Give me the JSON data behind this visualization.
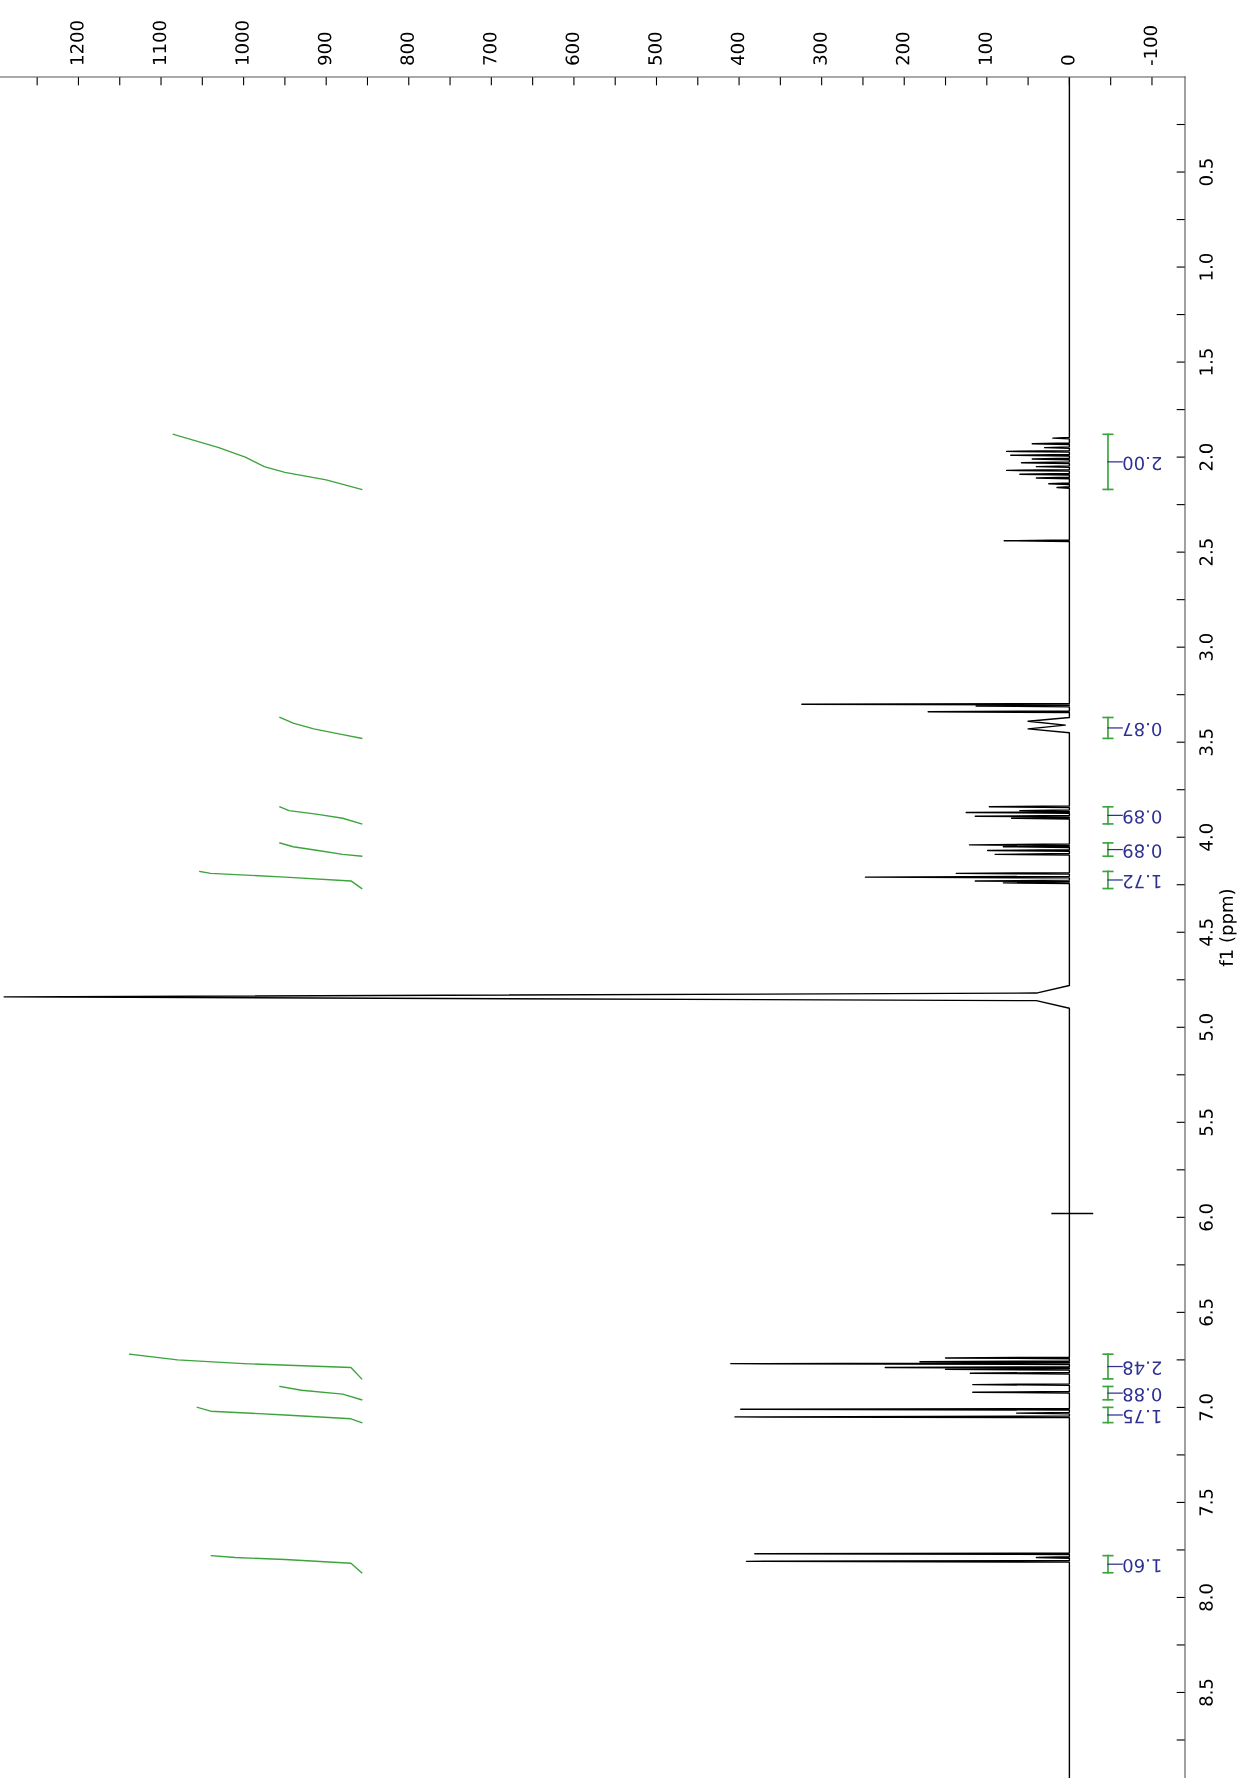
{
  "chart_data": {
    "type": "line",
    "orientation": "horizontal",
    "ylabel": "f1 (ppm)",
    "xlim": [
      1295,
      -140
    ],
    "ylim": [
      8.95,
      0
    ],
    "xticks": [
      {
        "value": 1250,
        "label": null
      },
      1200,
      {
        "value": 1150,
        "label": null
      },
      1100,
      {
        "value": 1050,
        "label": null
      },
      1000,
      {
        "value": 950,
        "label": null
      },
      900,
      {
        "value": 850,
        "label": null
      },
      800,
      {
        "value": 750,
        "label": null
      },
      700,
      {
        "value": 650,
        "label": null
      },
      600,
      {
        "value": 550,
        "label": null
      },
      500,
      {
        "value": 450,
        "label": null
      },
      400,
      {
        "value": 350,
        "label": null
      },
      300,
      {
        "value": 250,
        "label": null
      },
      200,
      {
        "value": 150,
        "label": null
      },
      100,
      {
        "value": 50,
        "label": null
      },
      0,
      {
        "value": -50,
        "label": null
      },
      -100
    ],
    "yticks": [
      {
        "value": 0.25,
        "label": null
      },
      0.5,
      {
        "value": 0.75,
        "label": null
      },
      {
        "value": 1,
        "label": "1.0"
      },
      {
        "value": 1.25,
        "label": null
      },
      1.5,
      {
        "value": 1.75,
        "label": null
      },
      {
        "value": 2,
        "label": "2.0"
      },
      {
        "value": 2.25,
        "label": null
      },
      2.5,
      {
        "value": 2.75,
        "label": null
      },
      {
        "value": 3,
        "label": "3.0"
      },
      {
        "value": 3.25,
        "label": null
      },
      3.5,
      {
        "value": 3.75,
        "label": null
      },
      {
        "value": 4,
        "label": "4.0"
      },
      {
        "value": 4.25,
        "label": null
      },
      4.5,
      {
        "value": 4.75,
        "label": null
      },
      {
        "value": 5,
        "label": "5.0"
      },
      {
        "value": 5.25,
        "label": null
      },
      5.5,
      {
        "value": 5.75,
        "label": null
      },
      {
        "value": 6,
        "label": "6.0"
      },
      {
        "value": 6.25,
        "label": null
      },
      6.5,
      {
        "value": 6.75,
        "label": null
      },
      {
        "value": 7,
        "label": "7.0"
      },
      {
        "value": 7.25,
        "label": null
      },
      7.5,
      {
        "value": 7.75,
        "label": null
      },
      {
        "value": 8,
        "label": "8.0"
      },
      {
        "value": 8.25,
        "label": null
      },
      8.5,
      {
        "value": 8.75,
        "label": null
      }
    ],
    "grid": false,
    "series": [
      {
        "color": "#000000",
        "x": [
          0,
          1.88,
          1.896,
          1.9,
          1.904,
          1.926,
          1.93,
          1.934,
          1.946,
          1.95,
          1.954,
          1.966,
          1.97,
          1.974,
          1.986,
          1.99,
          1.994,
          2.006,
          2.01,
          2.014,
          2.026,
          2.03,
          2.034,
          2.046,
          2.05,
          2.054,
          2.066,
          2.07,
          2.074,
          2.086,
          2.09,
          2.094,
          2.106,
          2.11,
          2.114,
          2.136,
          2.14,
          2.144,
          2.156,
          2.16,
          2.164,
          2.436,
          2.44,
          2.444,
          3.296,
          3.3,
          3.304,
          3.306,
          3.31,
          3.314,
          3.336,
          3.34,
          3.344,
          3.37,
          3.39,
          3.41,
          3.43,
          3.45,
          3.836,
          3.84,
          3.844,
          3.856,
          3.86,
          3.864,
          3.866,
          3.87,
          3.874,
          3.886,
          3.89,
          3.894,
          3.896,
          3.9,
          3.904,
          4.036,
          4.04,
          4.044,
          4.046,
          4.05,
          4.054,
          4.066,
          4.07,
          4.074,
          4.086,
          4.09,
          4.094,
          4.186,
          4.19,
          4.194,
          4.206,
          4.21,
          4.214,
          4.226,
          4.23,
          4.234,
          4.236,
          4.24,
          4.244,
          4.78,
          4.82,
          4.84,
          4.86,
          4.9,
          6.736,
          6.74,
          6.744,
          6.756,
          6.76,
          6.764,
          6.766,
          6.77,
          6.774,
          6.786,
          6.79,
          6.794,
          6.796,
          6.8,
          6.804,
          6.816,
          6.82,
          6.824,
          6.876,
          6.88,
          6.884,
          6.916,
          6.92,
          6.924,
          7.006,
          7.01,
          7.014,
          7.026,
          7.03,
          7.034,
          7.046,
          7.05,
          7.054,
          7.766,
          7.77,
          7.774,
          7.786,
          7.79,
          7.794,
          7.806,
          7.81,
          7.814,
          8.95
        ],
        "values": [
          0,
          0,
          0,
          20,
          0,
          0,
          45,
          0,
          0,
          30,
          0,
          0,
          76,
          0,
          0,
          71,
          0,
          0,
          45,
          0,
          0,
          58,
          0,
          0,
          40,
          0,
          0,
          76,
          0,
          0,
          60,
          0,
          0,
          40,
          0,
          0,
          25,
          0,
          0,
          15,
          0,
          0,
          79,
          0,
          0,
          324,
          0,
          0,
          113,
          0,
          0,
          171,
          0,
          0,
          50,
          5,
          50,
          0,
          0,
          97,
          0,
          0,
          60,
          0,
          0,
          125,
          0,
          0,
          114,
          0,
          0,
          70,
          0,
          0,
          121,
          0,
          0,
          80,
          0,
          0,
          99,
          0,
          0,
          90,
          0,
          0,
          137,
          0,
          0,
          247,
          0,
          0,
          114,
          0,
          0,
          80,
          0,
          0,
          40,
          1290,
          40,
          0,
          0,
          150,
          0,
          0,
          181,
          0,
          0,
          410,
          0,
          0,
          223,
          0,
          0,
          150,
          0,
          0,
          120,
          0,
          0,
          117,
          0,
          0,
          117,
          0,
          0,
          398,
          0,
          0,
          64,
          0,
          0,
          405,
          0,
          0,
          381,
          0,
          0,
          40,
          0,
          0,
          391,
          0,
          0
        ]
      },
      {
        "color": "#000000",
        "x": [
          5.98,
          5.98
        ],
        "values": [
          21,
          -28
        ]
      },
      {
        "color": "#3ca43c",
        "x": [
          1.88,
          1.95,
          2.0,
          2.05,
          2.08,
          2.12,
          2.17
        ],
        "values": [
          1085,
          1030,
          998,
          975,
          950,
          900,
          857
        ]
      },
      {
        "color": "#3ca43c",
        "x": [
          3.37,
          3.4,
          3.43,
          3.46,
          3.48
        ],
        "values": [
          956,
          940,
          915,
          880,
          857
        ]
      },
      {
        "color": "#3ca43c",
        "x": [
          3.84,
          3.86,
          3.88,
          3.9,
          3.93
        ],
        "values": [
          956,
          945,
          910,
          880,
          857
        ]
      },
      {
        "color": "#3ca43c",
        "x": [
          4.03,
          4.05,
          4.07,
          4.09,
          4.1
        ],
        "values": [
          956,
          940,
          910,
          880,
          857
        ]
      },
      {
        "color": "#3ca43c",
        "x": [
          4.18,
          4.19,
          4.21,
          4.23,
          4.27
        ],
        "values": [
          1053,
          1040,
          950,
          870,
          857
        ]
      },
      {
        "color": "#3ca43c",
        "x": [
          6.72,
          6.75,
          6.77,
          6.79,
          6.85
        ],
        "values": [
          1138,
          1080,
          1000,
          870,
          857
        ]
      },
      {
        "color": "#3ca43c",
        "x": [
          6.89,
          6.91,
          6.93,
          6.96
        ],
        "values": [
          956,
          930,
          880,
          857
        ]
      },
      {
        "color": "#3ca43c",
        "x": [
          7.0,
          7.02,
          7.04,
          7.06,
          7.08
        ],
        "values": [
          1056,
          1040,
          950,
          870,
          857
        ]
      },
      {
        "color": "#3ca43c",
        "x": [
          7.78,
          7.79,
          7.8,
          7.82,
          7.87
        ],
        "values": [
          1039,
          1010,
          950,
          870,
          857
        ]
      }
    ],
    "annotations": [
      "2.00",
      "0.87",
      "0.89",
      "0.89",
      "1.72",
      "2.48",
      "0.88",
      "1.75",
      "1.60"
    ]
  }
}
